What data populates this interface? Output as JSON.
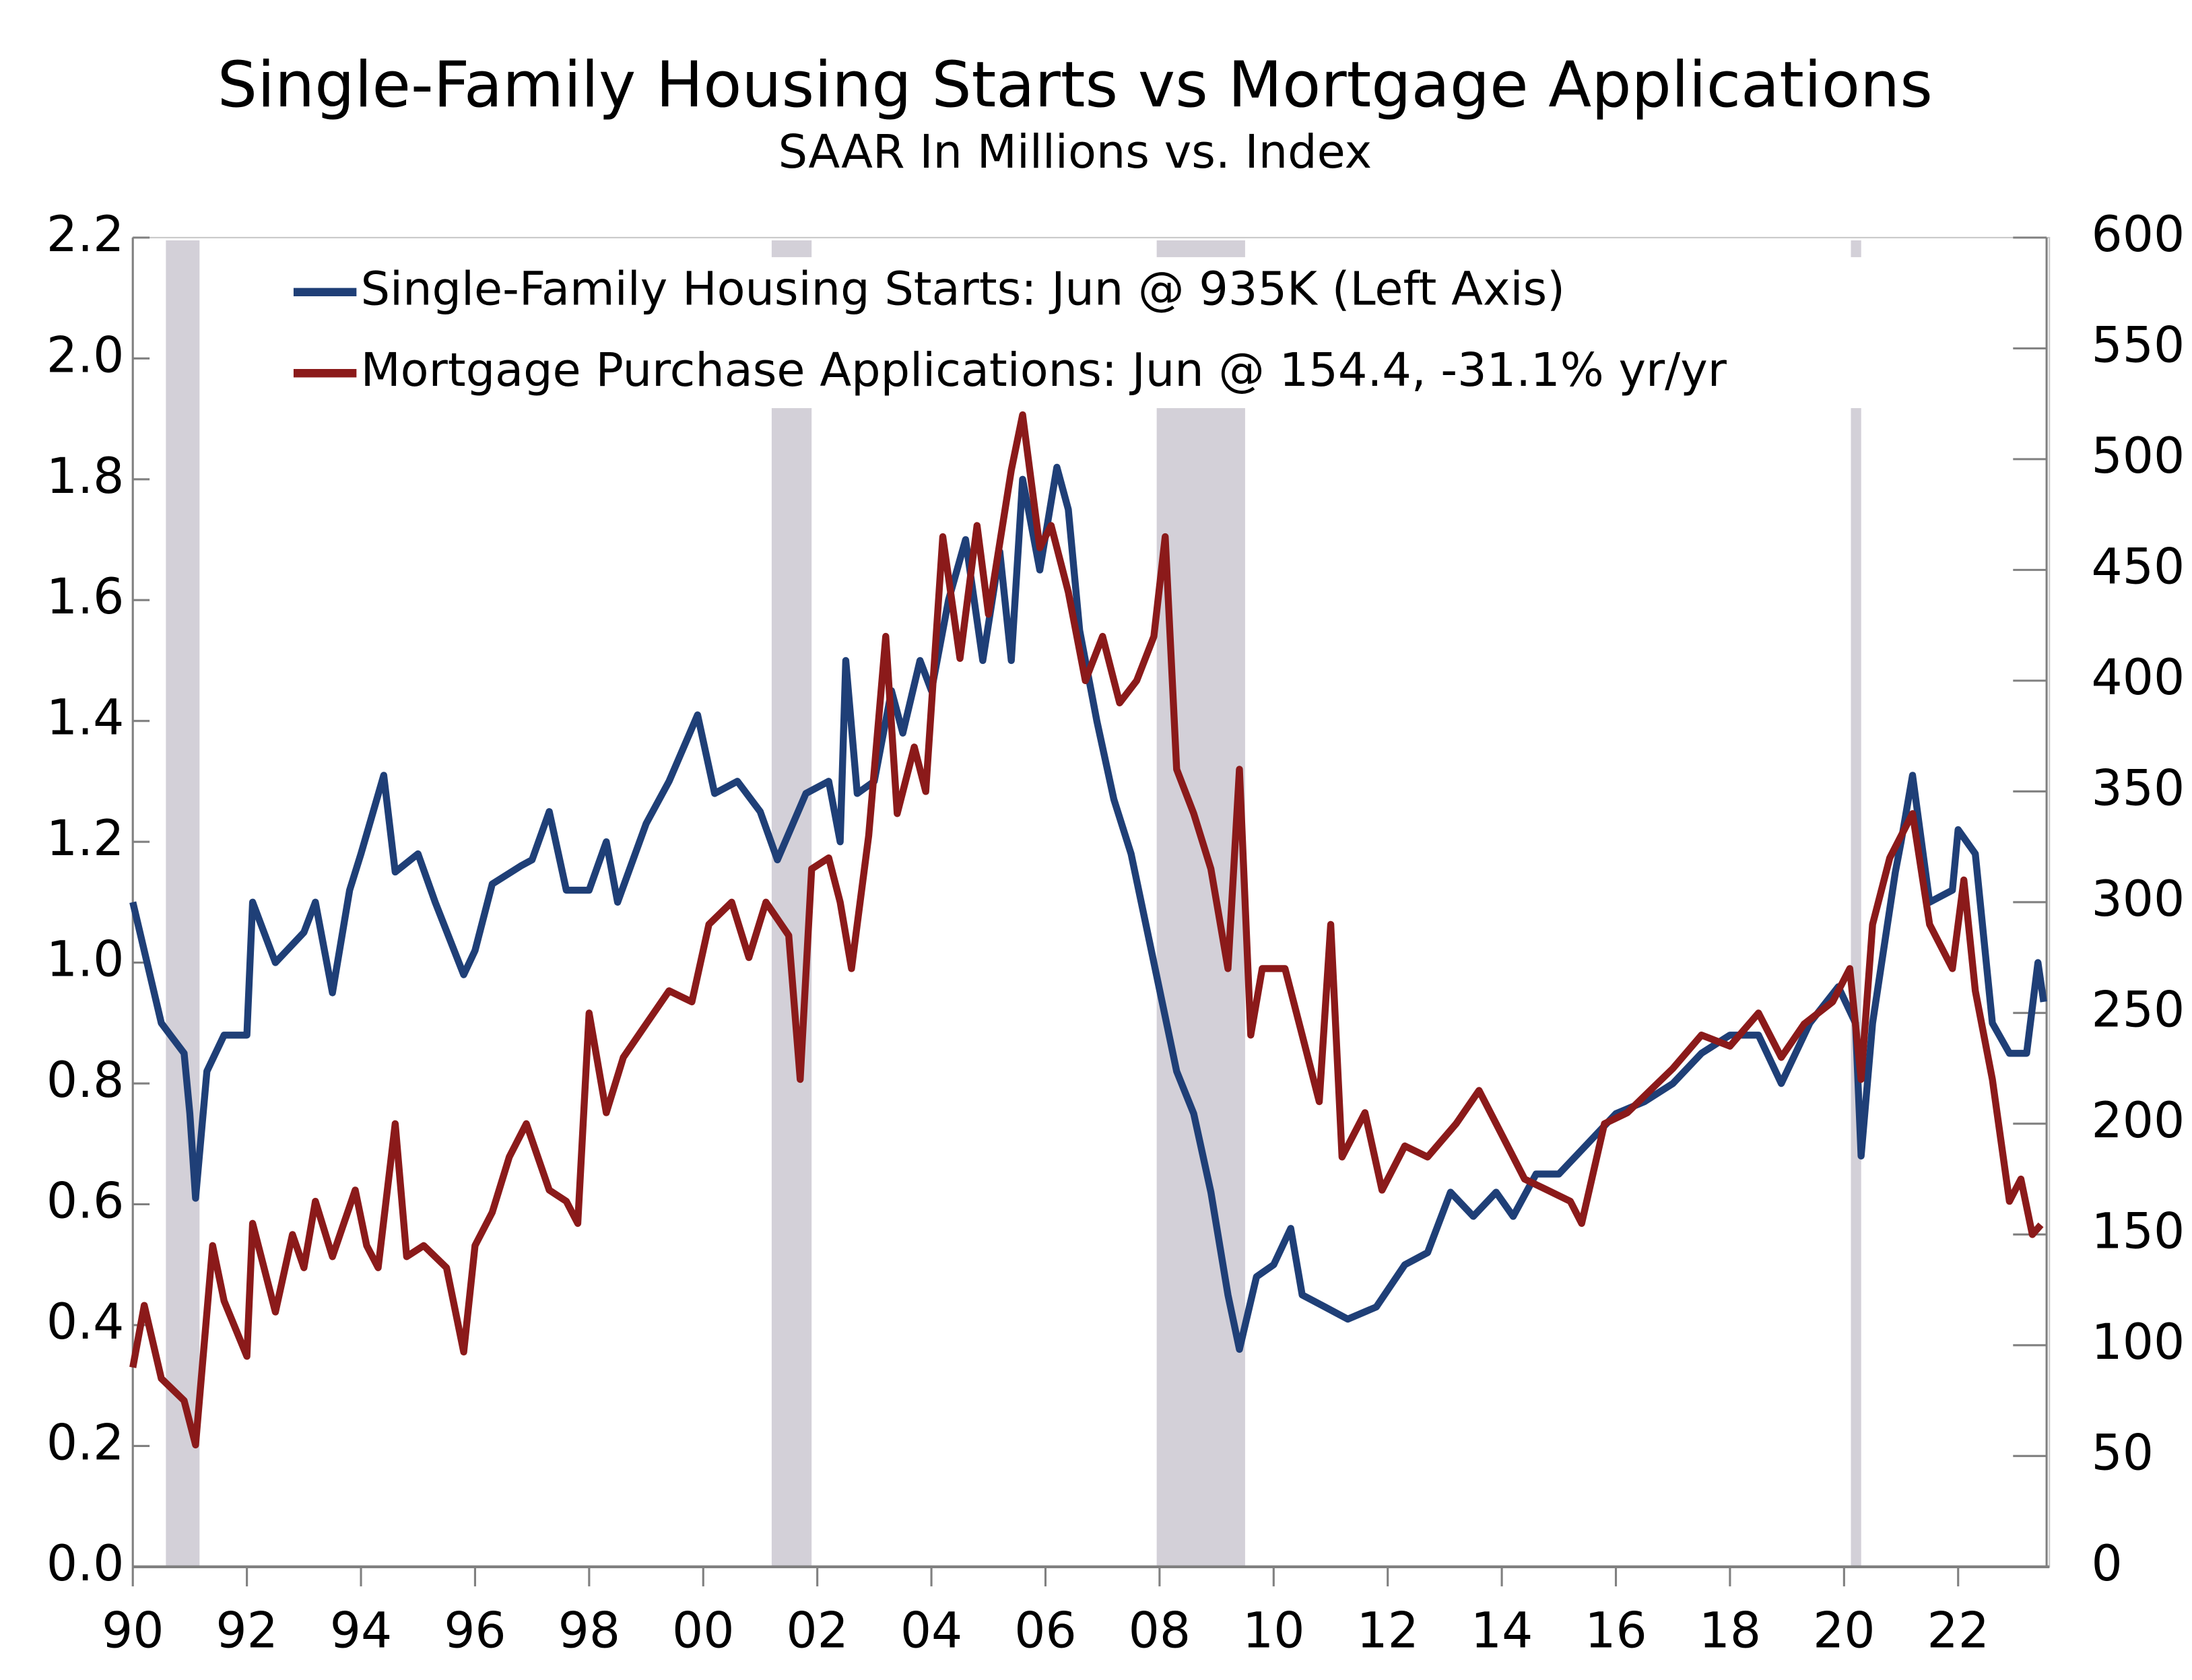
{
  "chart_data": {
    "type": "line",
    "title": "Single-Family Housing Starts vs Mortgage Applications",
    "subtitle": "SAAR In Millions vs. Index",
    "xlim": [
      1990,
      2023.6
    ],
    "xticks": [
      {
        "value": 1990,
        "label": "90"
      },
      {
        "value": 1992,
        "label": "92"
      },
      {
        "value": 1994,
        "label": "94"
      },
      {
        "value": 1996,
        "label": "96"
      },
      {
        "value": 1998,
        "label": "98"
      },
      {
        "value": 2000,
        "label": "00"
      },
      {
        "value": 2002,
        "label": "02"
      },
      {
        "value": 2004,
        "label": "04"
      },
      {
        "value": 2006,
        "label": "06"
      },
      {
        "value": 2008,
        "label": "08"
      },
      {
        "value": 2010,
        "label": "10"
      },
      {
        "value": 2012,
        "label": "12"
      },
      {
        "value": 2014,
        "label": "14"
      },
      {
        "value": 2016,
        "label": "16"
      },
      {
        "value": 2018,
        "label": "18"
      },
      {
        "value": 2020,
        "label": "20"
      },
      {
        "value": 2022,
        "label": "22"
      }
    ],
    "ylim": [
      0,
      2.2
    ],
    "yticks": [
      {
        "value": 0,
        "label": "0.0"
      },
      0.2,
      0.4,
      0.6,
      0.8,
      {
        "value": 1,
        "label": "1.0"
      },
      1.2,
      1.4,
      1.6,
      1.8,
      {
        "value": 2,
        "label": "2.0"
      },
      2.2
    ],
    "y2lim": [
      0,
      600
    ],
    "y2ticks": [
      0,
      50,
      100,
      150,
      200,
      250,
      300,
      350,
      400,
      450,
      500,
      550,
      600
    ],
    "recessions": [
      [
        1990.58,
        1991.17
      ],
      [
        2001.2,
        2001.9
      ],
      [
        2007.95,
        2009.5
      ],
      [
        2020.12,
        2020.3
      ]
    ],
    "recession_color": "#d3d0d8",
    "series": [
      {
        "name": "Single-Family Housing Starts: Jun @ 935K (Left Axis)",
        "color": "#1f3f77",
        "x": [
          1990,
          1990.5,
          1990.9,
          1991,
          1991.1,
          1991.3,
          1991.6,
          1992,
          1992.1,
          1992.5,
          1993,
          1993.2,
          1993.5,
          1993.8,
          1994,
          1994.4,
          1994.6,
          1995,
          1995.3,
          1995.8,
          1996,
          1996.3,
          1996.8,
          1997,
          1997.3,
          1997.6,
          1998,
          1998.3,
          1998.5,
          1999,
          1999.4,
          1999.9,
          2000.2,
          2000.6,
          2001,
          2001.3,
          2001.8,
          2002.2,
          2002.4,
          2002.5,
          2002.7,
          2003,
          2003.3,
          2003.5,
          2003.8,
          2004,
          2004.3,
          2004.6,
          2004.9,
          2005.2,
          2005.4,
          2005.6,
          2005.9,
          2006.2,
          2006.4,
          2006.6,
          2006.9,
          2007.2,
          2007.5,
          2007.9,
          2008.3,
          2008.6,
          2008.9,
          2009.2,
          2009.4,
          2009.7,
          2010,
          2010.3,
          2010.5,
          2010.9,
          2011.3,
          2011.8,
          2012.3,
          2012.7,
          2013.1,
          2013.5,
          2013.9,
          2014.2,
          2014.6,
          2015,
          2015.5,
          2016,
          2016.5,
          2017,
          2017.5,
          2018,
          2018.5,
          2018.9,
          2019.4,
          2019.9,
          2020.2,
          2020.3,
          2020.5,
          2020.9,
          2021,
          2021.2,
          2021.5,
          2021.9,
          2022,
          2022.3,
          2022.6,
          2022.9,
          2023.2,
          2023.4,
          2023.5
        ],
        "values": [
          1.1,
          0.9,
          0.85,
          0.75,
          0.61,
          0.82,
          0.88,
          0.88,
          1.1,
          1.0,
          1.05,
          1.1,
          0.95,
          1.12,
          1.18,
          1.31,
          1.15,
          1.18,
          1.1,
          0.98,
          1.02,
          1.13,
          1.16,
          1.17,
          1.25,
          1.12,
          1.12,
          1.2,
          1.1,
          1.23,
          1.3,
          1.41,
          1.28,
          1.3,
          1.25,
          1.17,
          1.28,
          1.3,
          1.2,
          1.5,
          1.28,
          1.3,
          1.45,
          1.38,
          1.5,
          1.45,
          1.6,
          1.7,
          1.5,
          1.68,
          1.5,
          1.8,
          1.65,
          1.82,
          1.75,
          1.55,
          1.4,
          1.27,
          1.18,
          1.0,
          0.82,
          0.75,
          0.62,
          0.45,
          0.36,
          0.48,
          0.5,
          0.56,
          0.45,
          0.43,
          0.41,
          0.43,
          0.5,
          0.52,
          0.62,
          0.58,
          0.62,
          0.58,
          0.65,
          0.65,
          0.7,
          0.75,
          0.77,
          0.8,
          0.85,
          0.88,
          0.88,
          0.8,
          0.9,
          0.96,
          0.9,
          0.68,
          0.9,
          1.15,
          1.2,
          1.31,
          1.1,
          1.12,
          1.22,
          1.18,
          0.9,
          0.85,
          0.85,
          1.0,
          0.935
        ]
      },
      {
        "name": "Mortgage Purchase Applications: Jun @ 154.4, -31.1% yr/yr",
        "color": "#8b1a1a",
        "axis": "y2",
        "x": [
          1990,
          1990.2,
          1990.5,
          1990.9,
          1991.1,
          1991.4,
          1991.6,
          1992,
          1992.1,
          1992.5,
          1992.8,
          1993,
          1993.2,
          1993.5,
          1993.9,
          1994.1,
          1994.3,
          1994.6,
          1994.8,
          1995.1,
          1995.5,
          1995.8,
          1996,
          1996.3,
          1996.6,
          1996.9,
          1997.3,
          1997.6,
          1997.8,
          1998,
          1998.3,
          1998.6,
          1999,
          1999.4,
          1999.8,
          2000.1,
          2000.5,
          2000.8,
          2001.1,
          2001.5,
          2001.7,
          2001.9,
          2002.2,
          2002.4,
          2002.6,
          2002.9,
          2003.2,
          2003.4,
          2003.7,
          2003.9,
          2004.2,
          2004.5,
          2004.8,
          2005,
          2005.4,
          2005.6,
          2005.9,
          2006.1,
          2006.4,
          2006.7,
          2007,
          2007.3,
          2007.6,
          2007.9,
          2008.1,
          2008.3,
          2008.6,
          2008.9,
          2009.2,
          2009.4,
          2009.6,
          2009.8,
          2010.2,
          2010.5,
          2010.8,
          2011,
          2011.2,
          2011.6,
          2011.9,
          2012.3,
          2012.7,
          2013.2,
          2013.6,
          2014,
          2014.4,
          2014.8,
          2015.2,
          2015.4,
          2015.8,
          2016.2,
          2016.6,
          2017,
          2017.5,
          2018,
          2018.5,
          2018.9,
          2019.3,
          2019.8,
          2020.1,
          2020.3,
          2020.5,
          2020.8,
          2021.2,
          2021.5,
          2021.9,
          2022.1,
          2022.3,
          2022.6,
          2022.9,
          2023.1,
          2023.3,
          2023.45
        ],
        "values": [
          90,
          118,
          85,
          75,
          55,
          145,
          120,
          95,
          155,
          115,
          150,
          135,
          165,
          140,
          170,
          145,
          135,
          200,
          140,
          145,
          135,
          97,
          145,
          160,
          185,
          200,
          170,
          165,
          155,
          250,
          205,
          230,
          245,
          260,
          255,
          290,
          300,
          275,
          300,
          285,
          220,
          315,
          320,
          300,
          270,
          330,
          420,
          340,
          370,
          350,
          465,
          410,
          470,
          430,
          495,
          520,
          460,
          470,
          440,
          400,
          420,
          390,
          400,
          420,
          465,
          360,
          340,
          315,
          270,
          360,
          240,
          270,
          270,
          240,
          210,
          290,
          185,
          205,
          170,
          190,
          185,
          200,
          215,
          195,
          175,
          170,
          165,
          155,
          200,
          205,
          215,
          225,
          240,
          235,
          250,
          230,
          245,
          255,
          270,
          220,
          290,
          320,
          340,
          290,
          270,
          310,
          260,
          220,
          165,
          175,
          150,
          154.4
        ]
      }
    ]
  }
}
